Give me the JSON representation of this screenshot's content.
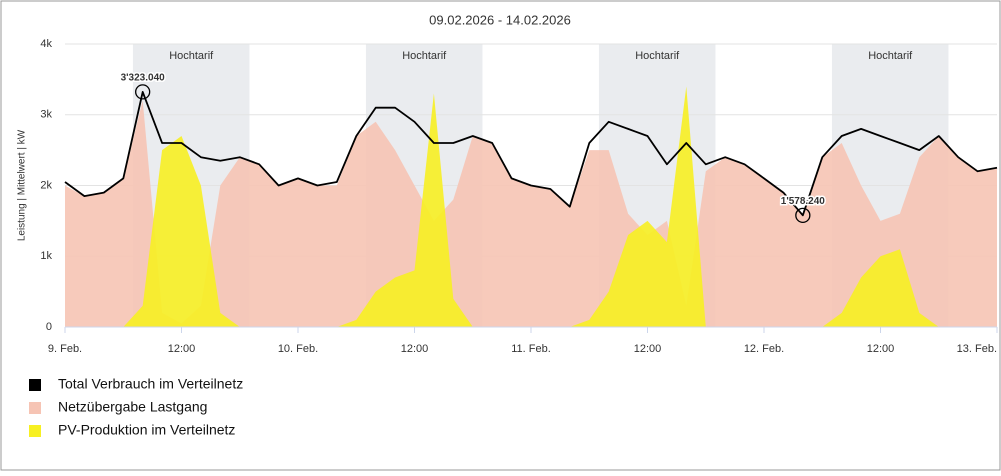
{
  "chart_data": {
    "type": "line",
    "title": "09.02.2026 - 14.02.2026",
    "y_label": "Leistung | Mittelwert | kW",
    "x": [
      "2026-02-09T00:00",
      "2026-02-09T02:00",
      "2026-02-09T04:00",
      "2026-02-09T06:00",
      "2026-02-09T08:00",
      "2026-02-09T10:00",
      "2026-02-09T12:00",
      "2026-02-09T14:00",
      "2026-02-09T16:00",
      "2026-02-09T18:00",
      "2026-02-09T20:00",
      "2026-02-09T22:00",
      "2026-02-10T00:00",
      "2026-02-10T02:00",
      "2026-02-10T04:00",
      "2026-02-10T06:00",
      "2026-02-10T08:00",
      "2026-02-10T10:00",
      "2026-02-10T12:00",
      "2026-02-10T14:00",
      "2026-02-10T16:00",
      "2026-02-10T18:00",
      "2026-02-10T20:00",
      "2026-02-10T22:00",
      "2026-02-11T00:00",
      "2026-02-11T02:00",
      "2026-02-11T04:00",
      "2026-02-11T06:00",
      "2026-02-11T08:00",
      "2026-02-11T10:00",
      "2026-02-11T12:00",
      "2026-02-11T14:00",
      "2026-02-11T16:00",
      "2026-02-11T18:00",
      "2026-02-11T20:00",
      "2026-02-11T22:00",
      "2026-02-12T00:00",
      "2026-02-12T02:00",
      "2026-02-12T04:00",
      "2026-02-12T06:00",
      "2026-02-12T08:00",
      "2026-02-12T10:00",
      "2026-02-12T12:00",
      "2026-02-12T14:00",
      "2026-02-12T16:00",
      "2026-02-12T18:00",
      "2026-02-12T20:00",
      "2026-02-12T22:00",
      "2026-02-13T00:00"
    ],
    "series": [
      {
        "name": "Total Verbrauch im Verteilnetz",
        "type": "line",
        "color": "#000000",
        "values": [
          2050,
          1850,
          1900,
          2100,
          3323.04,
          2600,
          2600,
          2400,
          2350,
          2400,
          2300,
          2000,
          2100,
          2000,
          2050,
          2700,
          3100,
          3100,
          2900,
          2600,
          2600,
          2700,
          2600,
          2100,
          2000,
          1950,
          1700,
          2600,
          2900,
          2800,
          2700,
          2300,
          2600,
          2300,
          2400,
          2300,
          2100,
          1900,
          1578.24,
          2400,
          2700,
          2800,
          2700,
          2600,
          2500,
          2700,
          2400,
          2200,
          2250
        ]
      },
      {
        "name": "Netzübergabe Lastgang",
        "type": "area",
        "color": "#f6c4b4",
        "values": [
          2000,
          1850,
          1900,
          2100,
          3200,
          200,
          50,
          300,
          2000,
          2400,
          2300,
          2000,
          2100,
          2000,
          2000,
          2700,
          2900,
          2500,
          2000,
          1500,
          1800,
          2700,
          2600,
          2100,
          2000,
          1950,
          1700,
          2500,
          2500,
          1600,
          1300,
          1500,
          300,
          2200,
          2400,
          2300,
          2100,
          1900,
          1600,
          2400,
          2600,
          2000,
          1500,
          1600,
          2400,
          2700,
          2400,
          2200,
          2250
        ]
      },
      {
        "name": "PV-Produktion im Verteilnetz",
        "type": "area",
        "color": "#f7f022",
        "values": [
          0,
          0,
          0,
          0,
          300,
          2500,
          2700,
          2000,
          200,
          0,
          0,
          0,
          0,
          0,
          0,
          100,
          500,
          700,
          800,
          3300,
          400,
          0,
          0,
          0,
          0,
          0,
          0,
          100,
          500,
          1300,
          1500,
          1200,
          3400,
          0,
          0,
          0,
          0,
          0,
          0,
          0,
          200,
          700,
          1000,
          1100,
          200,
          0,
          0,
          0,
          0
        ]
      }
    ],
    "xlim": [
      "2026-02-09T00:00",
      "2026-02-13T00:00"
    ],
    "xticks": [
      {
        "value": "2026-02-09T00:00",
        "label": "9. Feb."
      },
      {
        "value": "2026-02-09T12:00",
        "label": "12:00"
      },
      {
        "value": "2026-02-10T00:00",
        "label": "10. Feb."
      },
      {
        "value": "2026-02-10T12:00",
        "label": "12:00"
      },
      {
        "value": "2026-02-11T00:00",
        "label": "11. Feb."
      },
      {
        "value": "2026-02-11T12:00",
        "label": "12:00"
      },
      {
        "value": "2026-02-12T00:00",
        "label": "12. Feb."
      },
      {
        "value": "2026-02-12T12:00",
        "label": "12:00"
      },
      {
        "value": "2026-02-13T00:00",
        "label": "13. Feb."
      }
    ],
    "ylim": [
      0,
      4000
    ],
    "yticks": [
      0,
      {
        "value": 1000,
        "label": "1k"
      },
      {
        "value": 2000,
        "label": "2k"
      },
      {
        "value": 3000,
        "label": "3k"
      },
      {
        "value": 4000,
        "label": "4k"
      }
    ],
    "grid": true,
    "bands": [
      {
        "label": "Hochtarif",
        "from": "2026-02-09T07:00",
        "to": "2026-02-09T19:00"
      },
      {
        "label": "Hochtarif",
        "from": "2026-02-10T07:00",
        "to": "2026-02-10T19:00"
      },
      {
        "label": "Hochtarif",
        "from": "2026-02-11T07:00",
        "to": "2026-02-11T19:00"
      },
      {
        "label": "Hochtarif",
        "from": "2026-02-12T07:00",
        "to": "2026-02-12T19:00"
      }
    ],
    "annotations": [
      {
        "text": "3'323.040",
        "x": "2026-02-09T08:00",
        "y": 3323.04
      },
      {
        "text": "1'578.240",
        "x": "2026-02-12T04:00",
        "y": 1578.24
      }
    ]
  }
}
